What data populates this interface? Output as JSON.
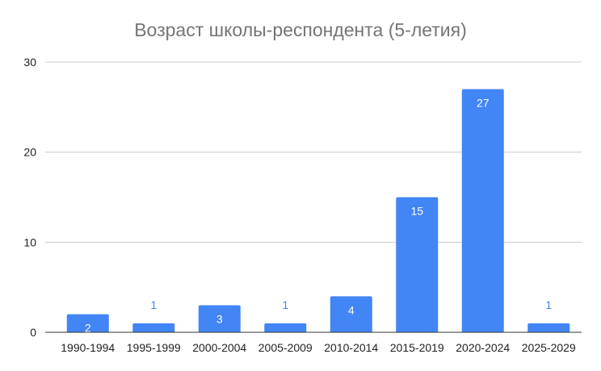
{
  "chart_data": {
    "type": "bar",
    "title": "Возраст школы-респондента (5-летия)",
    "xlabel": "",
    "ylabel": "",
    "categories": [
      "1990-1994",
      "1995-1999",
      "2000-2004",
      "2005-2009",
      "2010-2014",
      "2015-2019",
      "2020-2024",
      "2025-2029"
    ],
    "values": [
      2,
      1,
      3,
      1,
      4,
      15,
      27,
      1
    ],
    "data_labels": [
      "2",
      "1",
      "3",
      "1",
      "4",
      "15",
      "27",
      "1"
    ],
    "yticks": [
      "0",
      "10",
      "20",
      "30"
    ],
    "ylim": [
      0,
      30
    ],
    "grid": true,
    "legend": "none",
    "colors": {
      "bar": "#4285f4",
      "label_inside": "#ffffff",
      "label_outside": "#4285f4",
      "grid": "#cccccc",
      "baseline": "#333333",
      "title": "#757575"
    }
  }
}
